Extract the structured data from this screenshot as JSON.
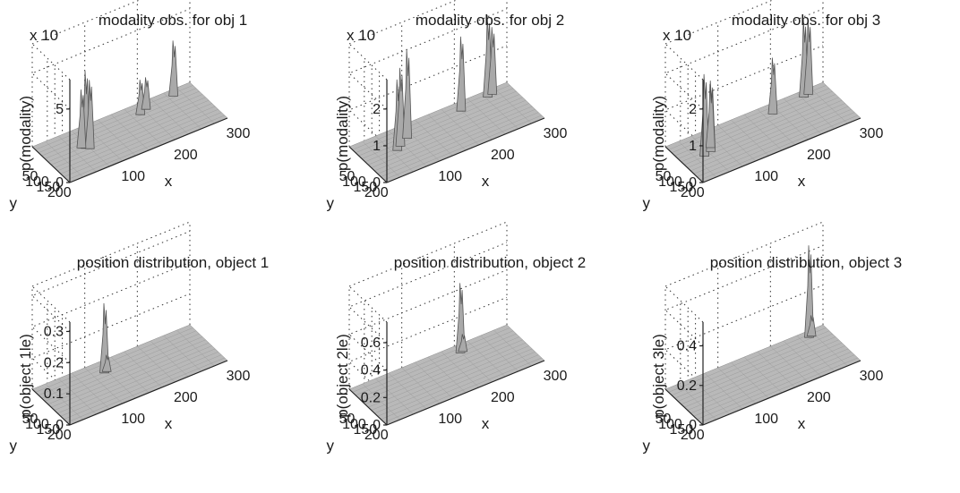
{
  "chart_data": [
    {
      "type": "surface3d",
      "title": "modality obs. for obj 1",
      "exponent": "x 10",
      "xlabel": "x",
      "ylabel": "y",
      "zlabel": "p(modality)",
      "xticks": [
        "100",
        "200",
        "300"
      ],
      "yticks": [
        "50",
        "100",
        "150",
        "200"
      ],
      "zticks": [
        "0",
        "5"
      ],
      "zlim": [
        0,
        7
      ],
      "peaks": [
        {
          "x": 70,
          "y": 110,
          "z": 5.2
        },
        {
          "x": 75,
          "y": 120,
          "z": 4.6
        },
        {
          "x": 65,
          "y": 100,
          "z": 3.9
        },
        {
          "x": 190,
          "y": 55,
          "z": 2.3
        },
        {
          "x": 205,
          "y": 40,
          "z": 2.1
        },
        {
          "x": 260,
          "y": 30,
          "z": 3.7
        }
      ]
    },
    {
      "type": "surface3d",
      "title": "modality obs. for obj 2",
      "exponent": "x 10",
      "xlabel": "x",
      "ylabel": "y",
      "zlabel": "p(modality)",
      "xticks": [
        "100",
        "200",
        "300"
      ],
      "yticks": [
        "50",
        "100",
        "150",
        "200"
      ],
      "zticks": [
        "0",
        "1",
        "2"
      ],
      "zlim": [
        0,
        2.8
      ],
      "peaks": [
        {
          "x": 60,
          "y": 110,
          "z": 1.9
        },
        {
          "x": 70,
          "y": 95,
          "z": 2.1
        },
        {
          "x": 90,
          "y": 70,
          "z": 2.4
        },
        {
          "x": 200,
          "y": 45,
          "z": 2.0
        },
        {
          "x": 255,
          "y": 30,
          "z": 2.2
        },
        {
          "x": 265,
          "y": 25,
          "z": 1.8
        }
      ]
    },
    {
      "type": "surface3d",
      "title": "modality obs. for obj 3",
      "exponent": "x 10",
      "xlabel": "x",
      "ylabel": "y",
      "zlabel": "p(modality)",
      "xticks": [
        "100",
        "200",
        "300"
      ],
      "yticks": [
        "50",
        "100",
        "150",
        "200"
      ],
      "zticks": [
        "0",
        "1",
        "2"
      ],
      "zlim": [
        0,
        2.8
      ],
      "peaks": [
        {
          "x": 40,
          "y": 120,
          "z": 2.2
        },
        {
          "x": 55,
          "y": 110,
          "z": 1.9
        },
        {
          "x": 60,
          "y": 90,
          "z": 1.7
        },
        {
          "x": 190,
          "y": 50,
          "z": 1.5
        },
        {
          "x": 255,
          "y": 30,
          "z": 2.1
        },
        {
          "x": 265,
          "y": 25,
          "z": 2.0
        }
      ]
    },
    {
      "type": "surface3d",
      "title": "position distribution, object 1",
      "xlabel": "x",
      "ylabel": "y",
      "zlabel": "p(object 1le)",
      "xticks": [
        "100",
        "200",
        "300"
      ],
      "yticks": [
        "50",
        "100",
        "150",
        "200"
      ],
      "zticks": [
        "0",
        "0.1",
        "0.2",
        "0.3"
      ],
      "zlim": [
        0,
        0.33
      ],
      "peaks": [
        {
          "x": 120,
          "y": 60,
          "z": 0.22
        },
        {
          "x": 125,
          "y": 58,
          "z": 0.05
        }
      ]
    },
    {
      "type": "surface3d",
      "title": "position distribution, object 2",
      "xlabel": "x",
      "ylabel": "y",
      "zlabel": "p(object 2le)",
      "xticks": [
        "100",
        "200",
        "300"
      ],
      "yticks": [
        "50",
        "100",
        "150",
        "200"
      ],
      "zticks": [
        "0",
        "0.2",
        "0.4",
        "0.6"
      ],
      "zlim": [
        0,
        0.75
      ],
      "peaks": [
        {
          "x": 200,
          "y": 40,
          "z": 0.5
        },
        {
          "x": 205,
          "y": 38,
          "z": 0.12
        }
      ]
    },
    {
      "type": "surface3d",
      "title": "position distribution, object 3",
      "xlabel": "x",
      "ylabel": "y",
      "zlabel": "p(object 3le)",
      "xticks": [
        "100",
        "200",
        "300"
      ],
      "yticks": [
        "50",
        "100",
        "150",
        "200"
      ],
      "zticks": [
        "0",
        "0.2",
        "0.4"
      ],
      "zlim": [
        0,
        0.52
      ],
      "peaks": [
        {
          "x": 265,
          "y": 30,
          "z": 0.46
        },
        {
          "x": 270,
          "y": 28,
          "z": 0.1
        }
      ]
    }
  ]
}
